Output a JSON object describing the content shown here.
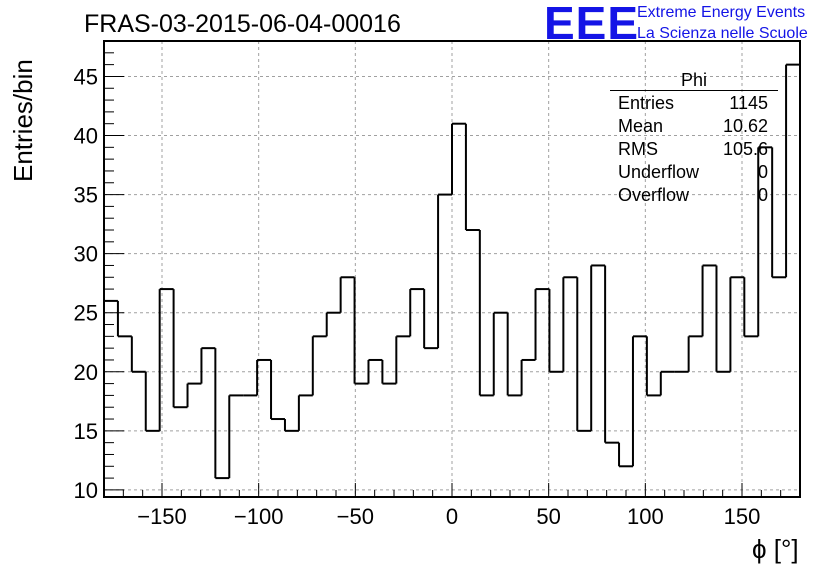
{
  "header": {
    "run_title": "FRAS-03-2015-06-04-00016"
  },
  "brand": {
    "logo": "EEE",
    "line1": "Extreme Energy Events",
    "line2": "La Scienza nelle Scuole",
    "color": "#1414e6"
  },
  "stats_box": {
    "name": "Phi",
    "rows": [
      {
        "label": "Entries",
        "value": "1145"
      },
      {
        "label": "Mean",
        "value": "10.62"
      },
      {
        "label": "RMS",
        "value": "105.6"
      },
      {
        "label": "Underflow",
        "value": "0"
      },
      {
        "label": "Overflow",
        "value": "0"
      }
    ]
  },
  "chart_data": {
    "type": "histogram",
    "xlabel": "ϕ [°]",
    "ylabel": "Entries/bin",
    "xlim": [
      -180,
      180
    ],
    "ylim": [
      9.4,
      48
    ],
    "bin_width": 7.2,
    "bin_edges_start": -180,
    "values": [
      26,
      23,
      20,
      15,
      27,
      17,
      19,
      22,
      11,
      18,
      18,
      21,
      16,
      15,
      18,
      23,
      25,
      28,
      19,
      21,
      19,
      23,
      27,
      22,
      35,
      41,
      32,
      18,
      25,
      18,
      21,
      27,
      20,
      28,
      15,
      29,
      14,
      12,
      23,
      18,
      20,
      20,
      23,
      29,
      20,
      28,
      23,
      39,
      28,
      46
    ],
    "xticks": [
      -150,
      -100,
      -50,
      0,
      50,
      100,
      150
    ],
    "xtick_labels": [
      "−150",
      "−100",
      "−50",
      "0",
      "50",
      "100",
      "150"
    ],
    "yticks": [
      10,
      15,
      20,
      25,
      30,
      35,
      40,
      45
    ],
    "ytick_labels": [
      "10",
      "15",
      "20",
      "25",
      "30",
      "35",
      "40",
      "45"
    ],
    "grid": true,
    "line_color": "#000000",
    "grid_color": "#a0a0a0"
  }
}
